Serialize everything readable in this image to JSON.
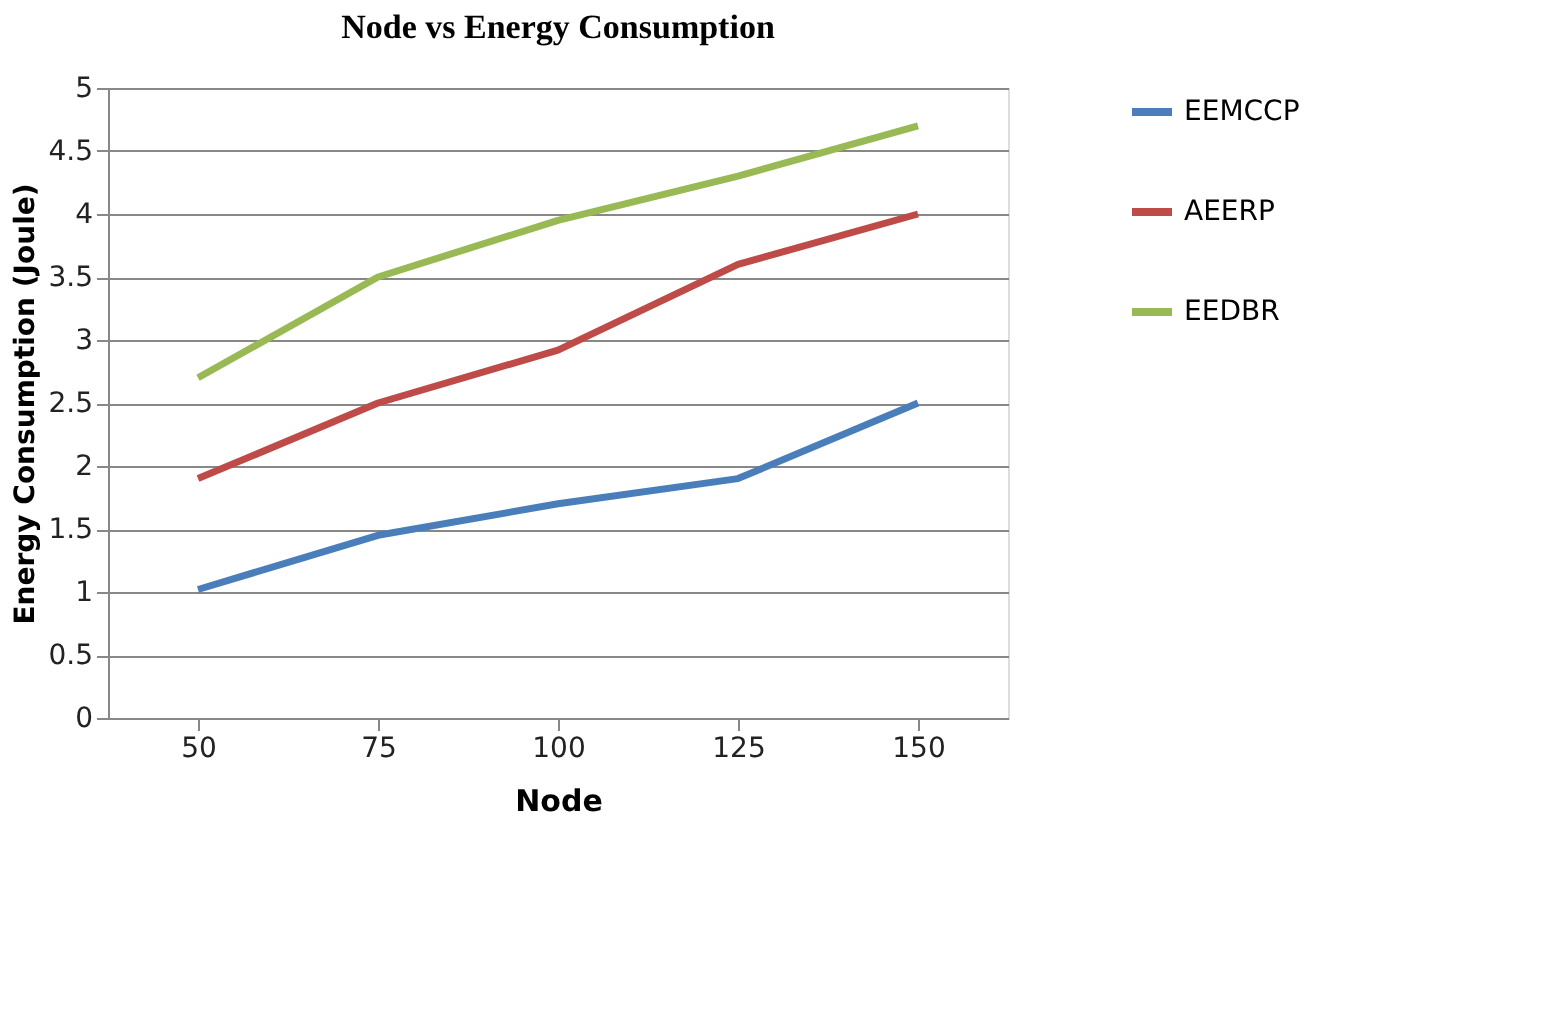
{
  "chart_data": {
    "type": "line",
    "title": "Node vs Energy Consumption",
    "xlabel": "Node",
    "ylabel": "Energy Consumption (Joule)",
    "categories": [
      "50",
      "75",
      "100",
      "125",
      "150"
    ],
    "series": [
      {
        "name": "EEMCCP",
        "color": "#4a7ebb",
        "values": [
          1.02,
          1.45,
          1.7,
          1.9,
          2.5
        ]
      },
      {
        "name": "AEERP",
        "color": "#be4b48",
        "values": [
          1.9,
          2.5,
          2.92,
          3.6,
          4.0
        ]
      },
      {
        "name": "EEDBR",
        "color": "#98b954",
        "values": [
          2.7,
          3.5,
          3.95,
          4.3,
          4.7
        ]
      }
    ],
    "ylim": [
      0,
      5
    ],
    "yticks": [
      0,
      0.5,
      1,
      1.5,
      2,
      2.5,
      3,
      3.5,
      4,
      4.5,
      5
    ],
    "grid": "y",
    "legend": "right",
    "marker": "none",
    "line_style": "solid"
  }
}
